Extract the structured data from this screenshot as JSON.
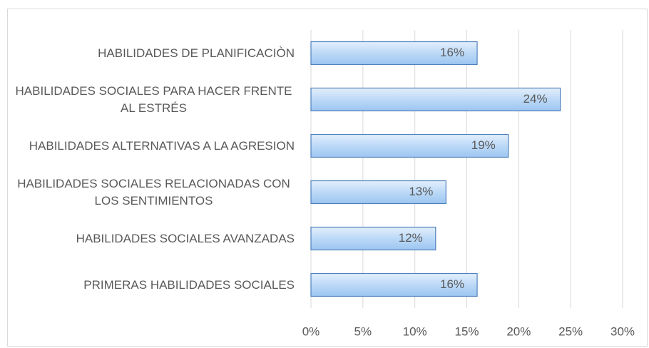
{
  "chart_data": {
    "type": "bar",
    "orientation": "horizontal",
    "categories": [
      "HABILIDADES DE PLANIFICACIÒN",
      "HABILIDADES SOCIALES PARA HACER FRENTE AL ESTRÉS",
      "HABILIDADES ALTERNATIVAS A LA AGRESION",
      "HABILIDADES SOCIALES RELACIONADAS CON LOS SENTIMIENTOS",
      "HABILIDADES SOCIALES AVANZADAS",
      "PRIMERAS HABILIDADES SOCIALES"
    ],
    "values": [
      16,
      24,
      19,
      13,
      12,
      16
    ],
    "value_labels": [
      "16%",
      "24%",
      "19%",
      "13%",
      "12%",
      "16%"
    ],
    "color": "#bcd9f7",
    "xlim": [
      0,
      30
    ],
    "xticks": [
      {
        "value": 0,
        "label": "0%"
      },
      {
        "value": 5,
        "label": "5%"
      },
      {
        "value": 10,
        "label": "10%"
      },
      {
        "value": 15,
        "label": "15%"
      },
      {
        "value": 20,
        "label": "20%"
      },
      {
        "value": 25,
        "label": "25%"
      },
      {
        "value": 30,
        "label": "30%"
      }
    ],
    "grid": true
  }
}
